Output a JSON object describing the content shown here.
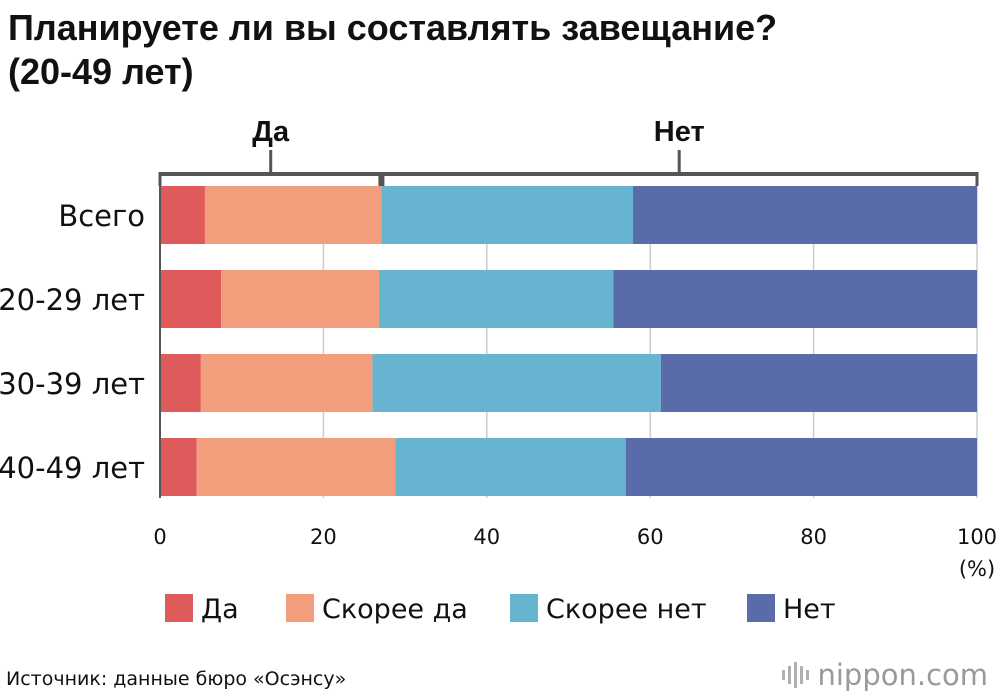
{
  "title": {
    "line1": "Планируете ли вы составлять завещание?",
    "line2": "(20-49 лет)"
  },
  "chart_data": {
    "type": "bar",
    "orientation": "horizontal",
    "stacked": true,
    "title": "Планируете ли вы составлять завещание? (20-49 лет)",
    "categories": [
      "Всего",
      "20-29 лет",
      "30-39 лет",
      "40-49 лет"
    ],
    "series": [
      {
        "name": "Да",
        "color": "#df5a5b",
        "values": [
          5.5,
          7.5,
          5.0,
          4.5
        ]
      },
      {
        "name": "Скорее да",
        "color": "#f29e7c",
        "values": [
          21.6,
          19.3,
          21.0,
          24.3
        ]
      },
      {
        "name": "Скорее нет",
        "color": "#66b4cf",
        "values": [
          30.8,
          28.7,
          35.3,
          28.2
        ]
      },
      {
        "name": "Нет",
        "color": "#596ba8",
        "values": [
          42.1,
          44.5,
          38.7,
          43.0
        ]
      }
    ],
    "xlim": [
      0,
      100
    ],
    "xticks": [
      0,
      20,
      40,
      60,
      80,
      100
    ],
    "unit": "(%)",
    "grid": true,
    "legend_position": "bottom",
    "group_brackets": [
      {
        "label": "Да",
        "from": 0,
        "to": 27.1
      },
      {
        "label": "Нет",
        "from": 27.1,
        "to": 100
      }
    ]
  },
  "source": "Источник: данные бюро «Осэнсу»",
  "brand": "nippon.com",
  "colors": {
    "axis": "#555555",
    "grid": "#cccccc",
    "brand": "#9a9a9a"
  }
}
